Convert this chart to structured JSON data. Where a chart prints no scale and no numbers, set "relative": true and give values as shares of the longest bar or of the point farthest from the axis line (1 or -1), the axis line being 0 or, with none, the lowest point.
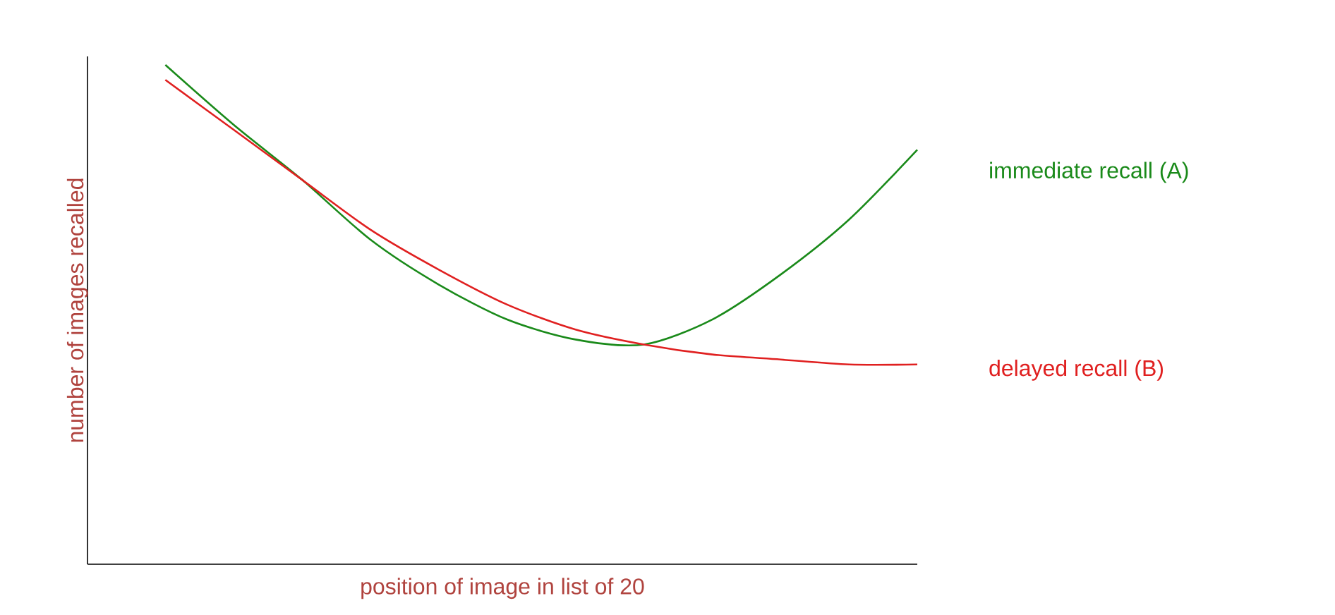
{
  "chart_data": {
    "type": "line",
    "relative": true,
    "xlabel": "position of image in list of 20",
    "ylabel": "number of images recalled",
    "categories": [
      null,
      null,
      null,
      null,
      null,
      null,
      null,
      null,
      null,
      null,
      null,
      null
    ],
    "series": [
      {
        "name": "immediate recall (A)",
        "color": "#1a8a1a",
        "values": [
          1.0,
          0.88,
          0.77,
          0.65,
          0.56,
          0.49,
          0.45,
          0.44,
          0.49,
          0.58,
          0.69,
          0.83
        ]
      },
      {
        "name": "delayed recall (B)",
        "color": "#e02020",
        "values": [
          0.97,
          0.87,
          0.77,
          0.67,
          0.59,
          0.52,
          0.47,
          0.44,
          0.42,
          0.41,
          0.4,
          0.4
        ]
      }
    ]
  }
}
